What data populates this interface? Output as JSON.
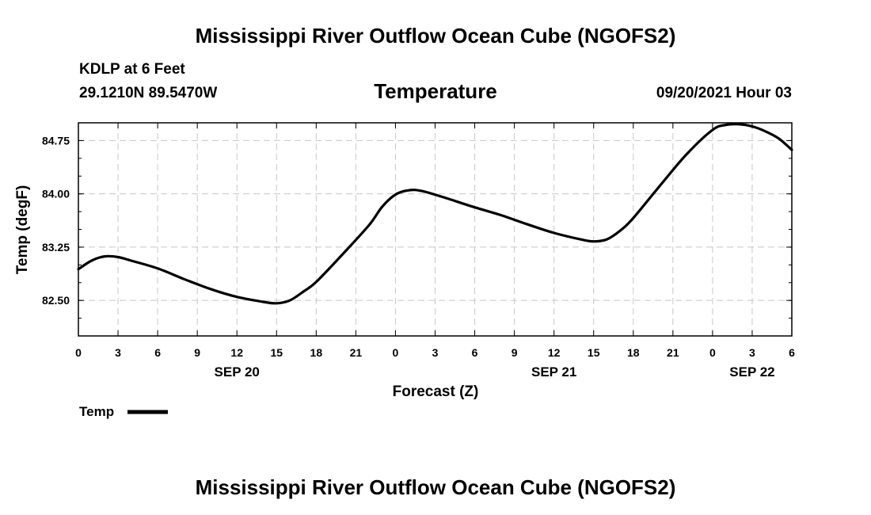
{
  "header": {
    "title": "Mississippi River Outflow Ocean Cube (NGOFS2)",
    "station": "KDLP at 6 Feet",
    "coordinates": "29.1210N  89.5470W",
    "datetime": "09/20/2021 Hour 03"
  },
  "footer": {
    "title": "Mississippi River Outflow Ocean Cube (NGOFS2)"
  },
  "chart_data": {
    "type": "line",
    "title": "Temperature",
    "xlabel": "Forecast (Z)",
    "ylabel": "Temp (degF)",
    "xlim": [
      0,
      54
    ],
    "ylim": [
      82.0,
      85.0
    ],
    "x_ticks": [
      0,
      3,
      6,
      9,
      12,
      15,
      18,
      21,
      24,
      27,
      30,
      33,
      36,
      39,
      42,
      45,
      48,
      51,
      54
    ],
    "x_tick_labels": [
      "0",
      "3",
      "6",
      "9",
      "12",
      "15",
      "18",
      "21",
      "0",
      "3",
      "6",
      "9",
      "12",
      "15",
      "18",
      "21",
      "0",
      "3",
      "6"
    ],
    "y_ticks": [
      82.5,
      83.25,
      84.0,
      84.75
    ],
    "y_tick_labels": [
      "82.50",
      "83.25",
      "84.00",
      "84.75"
    ],
    "date_labels": [
      {
        "x": 12,
        "label": "SEP 20"
      },
      {
        "x": 36,
        "label": "SEP 21"
      },
      {
        "x": 51,
        "label": "SEP 22"
      }
    ],
    "grid": true,
    "legend": {
      "position": "bottom-left",
      "entries": [
        "Temp"
      ]
    },
    "series": [
      {
        "name": "Temp",
        "color": "#000000",
        "x": [
          0,
          1,
          2,
          3,
          4,
          6,
          8,
          10,
          12,
          14,
          15,
          16,
          17,
          18,
          20,
          22,
          23,
          24,
          25,
          26,
          28,
          30,
          32,
          34,
          36,
          38,
          39,
          40,
          41,
          42,
          44,
          46,
          48,
          49,
          50,
          51,
          52,
          53,
          54
        ],
        "values": [
          82.94,
          83.06,
          83.12,
          83.11,
          83.06,
          82.95,
          82.8,
          82.66,
          82.55,
          82.48,
          82.46,
          82.5,
          82.62,
          82.76,
          83.15,
          83.56,
          83.82,
          83.99,
          84.05,
          84.04,
          83.93,
          83.81,
          83.7,
          83.57,
          83.45,
          83.36,
          83.33,
          83.36,
          83.48,
          83.66,
          84.11,
          84.55,
          84.9,
          84.97,
          84.98,
          84.95,
          84.88,
          84.78,
          84.62
        ]
      }
    ]
  }
}
